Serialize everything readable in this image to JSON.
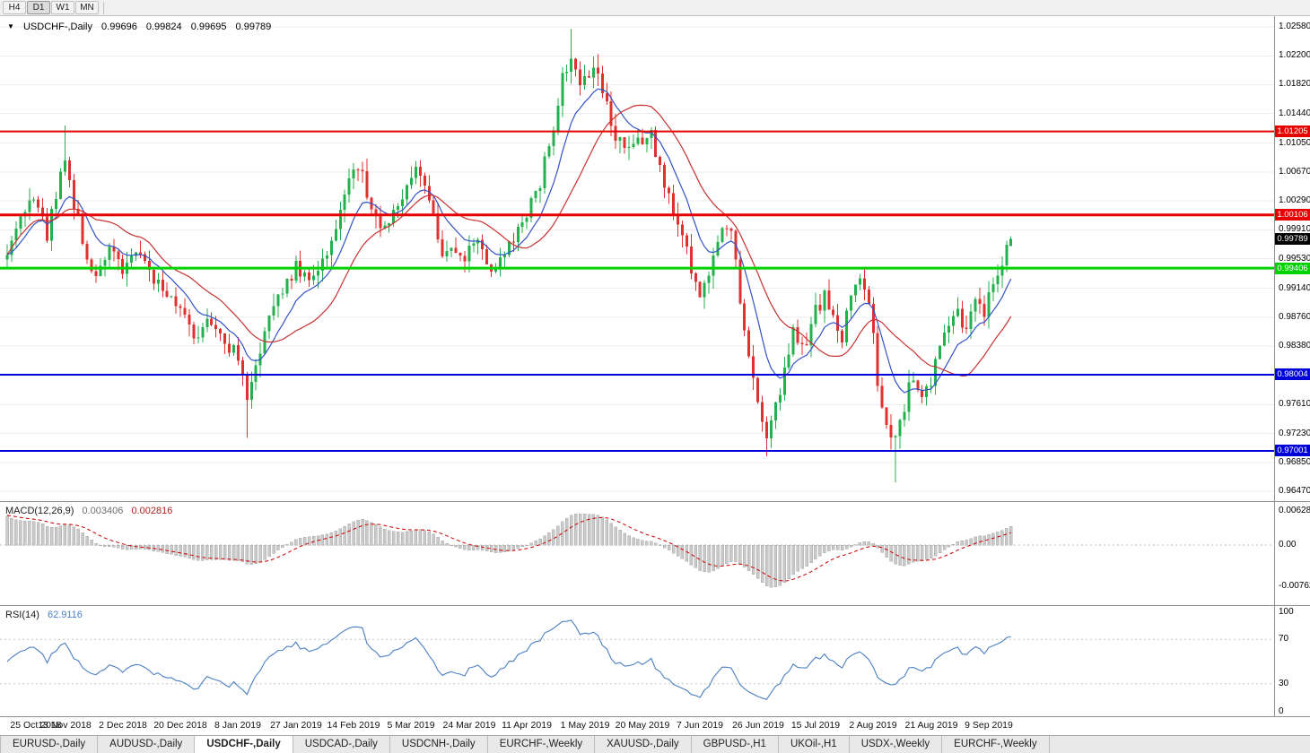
{
  "toolbar": {
    "timeframes": [
      "H4",
      "D1",
      "W1",
      "MN"
    ],
    "active": "D1"
  },
  "main_chart": {
    "dropdown_icon": "▼",
    "symbol": "USDCHF-,Daily",
    "ohlc": {
      "open": "0.99696",
      "high": "0.99824",
      "low": "0.99695",
      "close": "0.99789"
    },
    "price_axis_labels": [
      "1.02580",
      "1.02200",
      "1.01820",
      "1.01440",
      "1.01050",
      "1.00670",
      "1.00290",
      "0.99910",
      "0.99530",
      "0.99140",
      "0.98760",
      "0.98380",
      "0.97610",
      "0.97230",
      "0.96850",
      "0.96470"
    ],
    "levels": [
      {
        "price": 1.01205,
        "label": "1.01205",
        "color": "#e60000",
        "thickness": 2,
        "kind": "resistance"
      },
      {
        "price": 1.00106,
        "label": "1.00106",
        "color": "#e60000",
        "thickness": 3,
        "kind": "resistance"
      },
      {
        "price": 0.99406,
        "label": "0.99406",
        "color": "#00d200",
        "thickness": 3,
        "kind": "pivot"
      },
      {
        "price": 0.98004,
        "label": "0.98004",
        "color": "#0000d8",
        "thickness": 2,
        "kind": "support"
      },
      {
        "price": 0.97001,
        "label": "0.97001",
        "color": "#0000d8",
        "thickness": 2,
        "kind": "support"
      }
    ],
    "current_price_badge": {
      "label": "0.99789",
      "price": 0.99789,
      "bg": "#000000"
    }
  },
  "macd_panel": {
    "title": "MACD(12,26,9)",
    "value_main": "0.003406",
    "value_signal": "0.002816",
    "axis_labels": [
      {
        "text": "0.006286",
        "value": 0.006286
      },
      {
        "text": "0.00",
        "value": 0
      },
      {
        "text": "-0.00762",
        "value": -0.00762
      }
    ]
  },
  "rsi_panel": {
    "title": "RSI(14)",
    "value": "62.9116",
    "axis_labels": [
      {
        "text": "100",
        "value": 100
      },
      {
        "text": "70",
        "value": 70
      },
      {
        "text": "30",
        "value": 30
      },
      {
        "text": "0",
        "value": 0
      }
    ],
    "levels": [
      70,
      30
    ]
  },
  "date_axis": [
    "25 Oct 2018",
    "13 Nov 2018",
    "2 Dec 2018",
    "20 Dec 2018",
    "8 Jan 2019",
    "27 Jan 2019",
    "14 Feb 2019",
    "5 Mar 2019",
    "24 Mar 2019",
    "11 Apr 2019",
    "1 May 2019",
    "20 May 2019",
    "7 Jun 2019",
    "26 Jun 2019",
    "15 Jul 2019",
    "2 Aug 2019",
    "21 Aug 2019",
    "9 Sep 2019"
  ],
  "tabs": [
    {
      "label": "EURUSD-,Daily",
      "active": false
    },
    {
      "label": "AUDUSD-,Daily",
      "active": false
    },
    {
      "label": "USDCHF-,Daily",
      "active": true
    },
    {
      "label": "USDCAD-,Daily",
      "active": false
    },
    {
      "label": "USDCNH-,Daily",
      "active": false
    },
    {
      "label": "EURCHF-,Weekly",
      "active": false
    },
    {
      "label": "XAUUSD-,Daily",
      "active": false
    },
    {
      "label": "GBPUSD-,H1",
      "active": false
    },
    {
      "label": "UKOil-,H1",
      "active": false
    },
    {
      "label": "USDX-,Weekly",
      "active": false
    },
    {
      "label": "EURCHF-,Weekly",
      "active": false
    }
  ],
  "chart_data": {
    "type": "candlestick",
    "symbol": "USDCHF",
    "timeframe": "Daily",
    "title": "USDCHF-,Daily",
    "last_ohlc": {
      "open": 0.99696,
      "high": 0.99824,
      "low": 0.99695,
      "close": 0.99789
    },
    "candle_count": 227,
    "days_per_x_label": 13,
    "price_range_visible": [
      0.96352,
      1.02722
    ],
    "horizontal_levels": [
      1.01205,
      1.00106,
      0.99406,
      0.98004,
      0.97001
    ],
    "macd": {
      "fast": 12,
      "slow": 26,
      "signal": 9,
      "main_value": 0.003406,
      "signal_value": 0.002816,
      "axis_max": 0.006286,
      "axis_min": -0.00762
    },
    "rsi": {
      "period": 14,
      "value": 62.9116,
      "levels": [
        70,
        30
      ],
      "range": [
        0,
        100
      ]
    },
    "close_waypoints": [
      [
        0,
        0.9965
      ],
      [
        3,
        1.0005
      ],
      [
        6,
        1.004
      ],
      [
        9,
        0.9985
      ],
      [
        12,
        1.007
      ],
      [
        13,
        1.009
      ],
      [
        15,
        1.002
      ],
      [
        18,
        0.996
      ],
      [
        20,
        0.9925
      ],
      [
        23,
        0.9975
      ],
      [
        26,
        0.993
      ],
      [
        29,
        0.9965
      ],
      [
        33,
        0.993
      ],
      [
        36,
        0.9905
      ],
      [
        40,
        0.988
      ],
      [
        43,
        0.9845
      ],
      [
        46,
        0.9875
      ],
      [
        49,
        0.9845
      ],
      [
        52,
        0.9825
      ],
      [
        54,
        0.976
      ],
      [
        56,
        0.981
      ],
      [
        58,
        0.9865
      ],
      [
        61,
        0.9905
      ],
      [
        65,
        0.994
      ],
      [
        68,
        0.992
      ],
      [
        71,
        0.995
      ],
      [
        74,
        0.999
      ],
      [
        77,
        1.0065
      ],
      [
        79,
        1.008
      ],
      [
        81,
        1.0035
      ],
      [
        84,
        0.9995
      ],
      [
        87,
        1.0015
      ],
      [
        90,
        1.005
      ],
      [
        93,
        1.007
      ],
      [
        96,
        1.001
      ],
      [
        98,
        0.9945
      ],
      [
        100,
        0.9975
      ],
      [
        103,
        0.995
      ],
      [
        106,
        0.9985
      ],
      [
        108,
        0.995
      ],
      [
        110,
        0.993
      ],
      [
        112,
        0.996
      ],
      [
        114,
        0.9985
      ],
      [
        117,
        1.001
      ],
      [
        120,
        1.0055
      ],
      [
        123,
        1.0125
      ],
      [
        125,
        1.0195
      ],
      [
        127,
        1.0225
      ],
      [
        129,
        1.0185
      ],
      [
        131,
        1.0195
      ],
      [
        133,
        1.0205
      ],
      [
        135,
        1.0155
      ],
      [
        137,
        1.011
      ],
      [
        140,
        1.009
      ],
      [
        143,
        1.011
      ],
      [
        145,
        1.0125
      ],
      [
        147,
        1.007
      ],
      [
        150,
        1.002
      ],
      [
        153,
        0.996
      ],
      [
        156,
        0.9905
      ],
      [
        158,
        0.9935
      ],
      [
        161,
        0.9985
      ],
      [
        163,
        0.9995
      ],
      [
        165,
        0.989
      ],
      [
        167,
        0.982
      ],
      [
        169,
        0.976
      ],
      [
        171,
        0.972
      ],
      [
        173,
        0.9755
      ],
      [
        175,
        0.98
      ],
      [
        177,
        0.9855
      ],
      [
        179,
        0.983
      ],
      [
        182,
        0.9885
      ],
      [
        184,
        0.9905
      ],
      [
        186,
        0.987
      ],
      [
        188,
        0.985
      ],
      [
        190,
        0.991
      ],
      [
        192,
        0.9935
      ],
      [
        194,
        0.99
      ],
      [
        196,
        0.979
      ],
      [
        198,
        0.9725
      ],
      [
        200,
        0.971
      ],
      [
        202,
        0.976
      ],
      [
        204,
        0.98
      ],
      [
        206,
        0.9775
      ],
      [
        208,
        0.979
      ],
      [
        210,
        0.9845
      ],
      [
        212,
        0.9875
      ],
      [
        214,
        0.989
      ],
      [
        216,
        0.9855
      ],
      [
        218,
        0.9895
      ],
      [
        220,
        0.988
      ],
      [
        222,
        0.992
      ],
      [
        224,
        0.995
      ],
      [
        226,
        0.9979
      ]
    ],
    "candle_overrides": {
      "13": {
        "high": 1.0128
      },
      "54": {
        "low": 0.9717
      },
      "127": {
        "high": 1.0255
      },
      "133": {
        "high": 1.0222
      },
      "171": {
        "low": 0.9693
      },
      "200": {
        "low": 0.9659
      },
      "226": {
        "open": 0.99696,
        "high": 0.99824,
        "low": 0.99695,
        "close": 0.99789
      }
    },
    "colors": {
      "up": "#22b14c",
      "down": "#e03131",
      "ma_fast": "#3353c8",
      "ma_slow": "#c83232",
      "macd_hist": "#c9c9c9",
      "macd_signal": "#cc0000",
      "rsi": "#4a7fc1",
      "grid": "#ececec"
    }
  }
}
